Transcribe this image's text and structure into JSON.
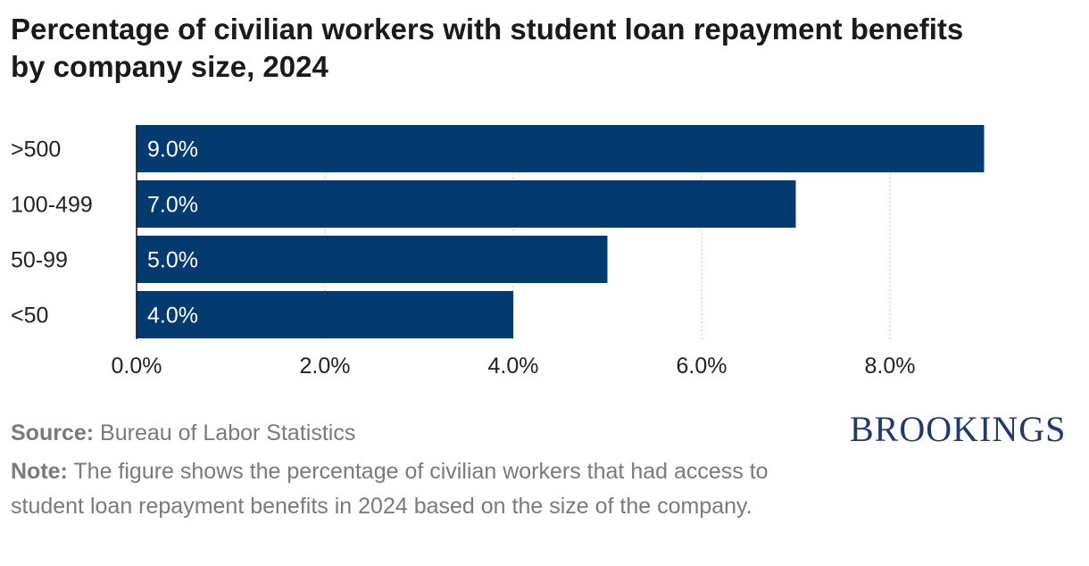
{
  "header": {
    "title_line1": "Percentage of civilian workers with student loan repayment benefits",
    "title_line2": "by company size, 2024"
  },
  "chart_data": {
    "type": "bar",
    "orientation": "horizontal",
    "categories": [
      ">500",
      "100-499",
      "50-99",
      "<50"
    ],
    "values": [
      9.0,
      7.0,
      5.0,
      4.0
    ],
    "value_labels": [
      "9.0%",
      "7.0%",
      "5.0%",
      "4.0%"
    ],
    "xticks": [
      0,
      2,
      4,
      6,
      8
    ],
    "xtick_labels": [
      "0.0%",
      "2.0%",
      "4.0%",
      "6.0%",
      "8.0%"
    ],
    "xlim": [
      0,
      9
    ],
    "grid": "vertical dotted",
    "bar_color": "#033a6f"
  },
  "footer": {
    "source_label": "Source:",
    "source_text": "Bureau of Labor Statistics",
    "note_label": "Note:",
    "note_text": "The figure shows the percentage of civilian workers that had access to student loan repayment benefits in 2024 based on the size of the company."
  },
  "brand": {
    "logo_text": "BROOKINGS",
    "logo_color": "#1e3a6e"
  }
}
